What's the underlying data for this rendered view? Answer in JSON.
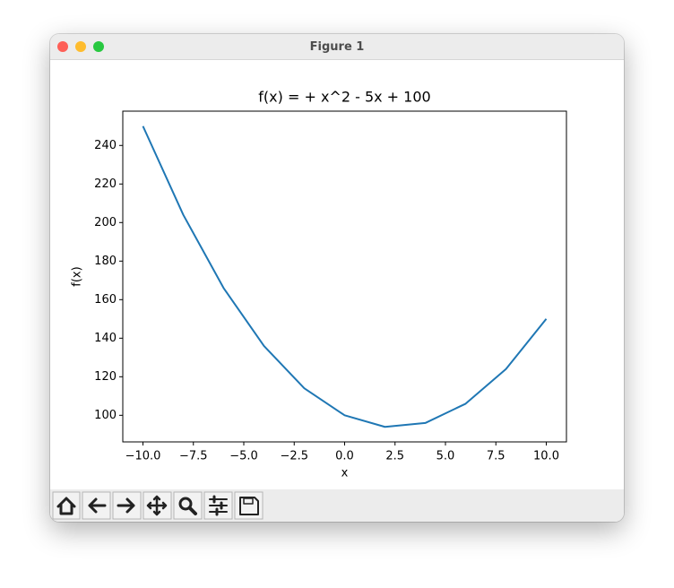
{
  "window": {
    "title": "Figure 1"
  },
  "chart_data": {
    "type": "line",
    "title": "f(x) = + x^2 - 5x + 100",
    "x_label": "x",
    "y_label": "f(x)",
    "x": [
      -10,
      -8,
      -6,
      -4,
      -2,
      0,
      2,
      4,
      6,
      8,
      10
    ],
    "values": [
      250,
      204,
      166,
      136,
      114,
      100,
      94,
      96,
      106,
      124,
      150
    ],
    "color": "#1f77b4",
    "xlim": [
      -11,
      11
    ],
    "xticks": [
      {
        "value": -10,
        "label": "−10.0"
      },
      {
        "value": -7.5,
        "label": "−7.5"
      },
      {
        "value": -5,
        "label": "−5.0"
      },
      {
        "value": -2.5,
        "label": "−2.5"
      },
      {
        "value": 0,
        "label": "0.0"
      },
      {
        "value": 2.5,
        "label": "2.5"
      },
      {
        "value": 5,
        "label": "5.0"
      },
      {
        "value": 7.5,
        "label": "7.5"
      },
      {
        "value": 10,
        "label": "10.0"
      }
    ],
    "ylim": [
      86.2,
      257.8
    ],
    "yticks": [
      100,
      120,
      140,
      160,
      180,
      200,
      220,
      240
    ],
    "grid": false
  }
}
